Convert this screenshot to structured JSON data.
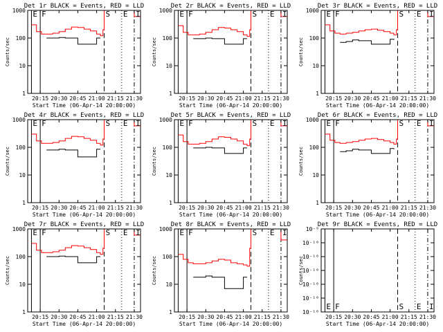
{
  "figure": {
    "xlabel": "Start Time (06-Apr-14 20:00:00)",
    "ylabel": "Counts/sec",
    "series_colors": {
      "events": "#000000",
      "lld": "#ff0000"
    },
    "xticks": [
      "20:15",
      "20:30",
      "20:45",
      "21:00",
      "21:15",
      "21:30"
    ],
    "markers": [
      {
        "label": "E",
        "x": "20:08",
        "style": "solid"
      },
      {
        "label": "F",
        "x": "20:15",
        "style": "solid"
      },
      {
        "label": "S",
        "x": "21:06",
        "style": "dashed"
      },
      {
        "label": "E",
        "x": "21:20",
        "style": "dotted"
      },
      {
        "label": "I",
        "x": "21:30",
        "style": "dash-dot"
      }
    ]
  },
  "chart_data": [
    {
      "type": "line",
      "title": "Det 1r BLACK = Events, RED = LLD",
      "yscale": "log",
      "ylim": [
        1,
        1000
      ],
      "yticks": [
        "1000",
        "100",
        "10",
        "1"
      ],
      "x": [
        "20:08",
        "20:12",
        "20:16",
        "20:20",
        "20:25",
        "20:30",
        "20:35",
        "20:40",
        "20:45",
        "20:50",
        "20:55",
        "21:00",
        "21:03",
        "21:05",
        "21:06",
        "21:07",
        "21:09",
        "21:20",
        "21:30",
        "21:35"
      ],
      "lld": [
        300,
        170,
        140,
        140,
        150,
        170,
        210,
        250,
        240,
        210,
        180,
        140,
        120,
        200,
        1000,
        1000,
        1000,
        1000,
        600,
        400
      ],
      "events": [
        null,
        null,
        null,
        100,
        100,
        105,
        100,
        100,
        60,
        60,
        60,
        100,
        100,
        null,
        null,
        null,
        null,
        null,
        null,
        null
      ]
    },
    {
      "type": "line",
      "title": "Det 2r BLACK = Events, RED = LLD",
      "yscale": "log",
      "ylim": [
        1,
        1000
      ],
      "yticks": [
        "1000",
        "100",
        "10",
        "1"
      ],
      "x": [
        "20:08",
        "20:12",
        "20:16",
        "20:20",
        "20:25",
        "20:30",
        "20:35",
        "20:40",
        "20:45",
        "20:50",
        "20:55",
        "21:00",
        "21:03",
        "21:05",
        "21:06",
        "21:07",
        "21:09",
        "21:20",
        "21:30",
        "21:35"
      ],
      "lld": [
        280,
        160,
        130,
        130,
        140,
        160,
        200,
        240,
        230,
        200,
        170,
        130,
        115,
        200,
        1000,
        1000,
        1000,
        1000,
        600,
        400
      ],
      "events": [
        null,
        null,
        null,
        95,
        95,
        100,
        95,
        95,
        60,
        60,
        60,
        95,
        95,
        null,
        null,
        null,
        null,
        null,
        null,
        null
      ]
    },
    {
      "type": "line",
      "title": "Det 3r BLACK = Events, RED = LLD",
      "yscale": "log",
      "ylim": [
        1,
        1000
      ],
      "yticks": [
        "1000",
        "100",
        "10",
        "1"
      ],
      "x": [
        "20:08",
        "20:12",
        "20:16",
        "20:20",
        "20:25",
        "20:30",
        "20:35",
        "20:40",
        "20:45",
        "20:50",
        "20:55",
        "21:00",
        "21:03",
        "21:05",
        "21:06",
        "21:07",
        "21:09",
        "21:20",
        "21:30",
        "21:35"
      ],
      "lld": [
        300,
        180,
        150,
        140,
        150,
        160,
        180,
        200,
        210,
        190,
        170,
        150,
        130,
        200,
        1000,
        1000,
        1000,
        1000,
        600,
        400
      ],
      "events": [
        null,
        null,
        null,
        70,
        75,
        85,
        80,
        80,
        60,
        60,
        60,
        90,
        85,
        null,
        null,
        null,
        null,
        null,
        null,
        null
      ]
    },
    {
      "type": "line",
      "title": "Det 4r BLACK = Events, RED = LLD",
      "yscale": "log",
      "ylim": [
        1,
        1000
      ],
      "yticks": [
        "1000",
        "100",
        "10",
        "1"
      ],
      "x": [
        "20:08",
        "20:12",
        "20:16",
        "20:20",
        "20:25",
        "20:30",
        "20:35",
        "20:40",
        "20:45",
        "20:50",
        "20:55",
        "21:00",
        "21:03",
        "21:05",
        "21:06",
        "21:07",
        "21:09",
        "21:20",
        "21:30",
        "21:35"
      ],
      "lld": [
        300,
        170,
        140,
        140,
        150,
        170,
        210,
        250,
        240,
        210,
        180,
        140,
        120,
        200,
        1000,
        1000,
        1000,
        1000,
        600,
        400
      ],
      "events": [
        null,
        null,
        null,
        80,
        80,
        85,
        80,
        80,
        45,
        45,
        45,
        85,
        85,
        null,
        null,
        null,
        null,
        null,
        null,
        null
      ]
    },
    {
      "type": "line",
      "title": "Det 5r BLACK = Events, RED = LLD",
      "yscale": "log",
      "ylim": [
        1,
        1000
      ],
      "yticks": [
        "1000",
        "100",
        "10",
        "1"
      ],
      "x": [
        "20:08",
        "20:12",
        "20:16",
        "20:20",
        "20:25",
        "20:30",
        "20:35",
        "20:40",
        "20:45",
        "20:50",
        "20:55",
        "21:00",
        "21:03",
        "21:05",
        "21:06",
        "21:07",
        "21:09",
        "21:20",
        "21:30",
        "21:35"
      ],
      "lld": [
        280,
        160,
        130,
        130,
        140,
        160,
        200,
        240,
        230,
        200,
        170,
        130,
        115,
        200,
        1000,
        1000,
        1000,
        1000,
        600,
        400
      ],
      "events": [
        null,
        null,
        null,
        95,
        95,
        100,
        95,
        95,
        60,
        60,
        60,
        95,
        95,
        null,
        null,
        null,
        null,
        null,
        null,
        null
      ]
    },
    {
      "type": "line",
      "title": "Det 6r BLACK = Events, RED = LLD",
      "yscale": "log",
      "ylim": [
        1,
        1000
      ],
      "yticks": [
        "1000",
        "100",
        "10",
        "1"
      ],
      "x": [
        "20:08",
        "20:12",
        "20:16",
        "20:20",
        "20:25",
        "20:30",
        "20:35",
        "20:40",
        "20:45",
        "20:50",
        "20:55",
        "21:00",
        "21:03",
        "21:05",
        "21:06",
        "21:07",
        "21:09",
        "21:20",
        "21:30",
        "21:35"
      ],
      "lld": [
        300,
        180,
        150,
        140,
        150,
        160,
        180,
        200,
        210,
        190,
        170,
        150,
        130,
        200,
        1000,
        1000,
        1000,
        1000,
        600,
        400
      ],
      "events": [
        null,
        null,
        null,
        70,
        75,
        85,
        80,
        80,
        60,
        60,
        60,
        90,
        85,
        null,
        null,
        null,
        null,
        null,
        null,
        null
      ]
    },
    {
      "type": "line",
      "title": "Det 7r BLACK = Events, RED = LLD",
      "yscale": "log",
      "ylim": [
        1,
        1000
      ],
      "yticks": [
        "1000",
        "100",
        "10",
        "1"
      ],
      "x": [
        "20:08",
        "20:12",
        "20:16",
        "20:20",
        "20:25",
        "20:30",
        "20:35",
        "20:40",
        "20:45",
        "20:50",
        "20:55",
        "21:00",
        "21:03",
        "21:05",
        "21:06",
        "21:07",
        "21:09",
        "21:20",
        "21:30",
        "21:35"
      ],
      "lld": [
        300,
        170,
        140,
        140,
        150,
        170,
        210,
        250,
        240,
        210,
        180,
        140,
        120,
        200,
        1000,
        1000,
        1000,
        1000,
        600,
        400
      ],
      "events": [
        null,
        null,
        null,
        100,
        100,
        105,
        100,
        100,
        60,
        60,
        60,
        100,
        100,
        null,
        null,
        null,
        null,
        null,
        null,
        null
      ]
    },
    {
      "type": "line",
      "title": "Det 8r BLACK = Events, RED = LLD",
      "yscale": "log",
      "ylim": [
        1,
        1000
      ],
      "yticks": [
        "1000",
        "100",
        "10",
        "1"
      ],
      "x": [
        "20:08",
        "20:12",
        "20:16",
        "20:20",
        "20:25",
        "20:30",
        "20:35",
        "20:40",
        "20:45",
        "20:50",
        "20:55",
        "21:00",
        "21:03",
        "21:05",
        "21:06",
        "21:07",
        "21:09",
        "21:20",
        "21:30",
        "21:35"
      ],
      "lld": [
        120,
        80,
        60,
        55,
        55,
        60,
        70,
        80,
        75,
        60,
        55,
        50,
        45,
        200,
        1000,
        1000,
        1000,
        1000,
        400,
        150
      ],
      "events": [
        null,
        null,
        null,
        18,
        18,
        20,
        18,
        18,
        7,
        7,
        7,
        18,
        18,
        null,
        null,
        null,
        null,
        null,
        null,
        null
      ]
    },
    {
      "type": "line",
      "title": "Det 9r BLACK = Events, RED = LLD",
      "yscale": "log",
      "ylim": [
        1e-10,
        1e-09
      ],
      "yticks": [
        "10⁻⁹",
        "10⁻¹⁰",
        "10⁻¹⁰",
        "10⁻¹⁰",
        "10⁻¹⁰",
        "10⁻¹⁰",
        "10⁻¹⁰"
      ],
      "x": [],
      "lld": [],
      "events": []
    }
  ]
}
